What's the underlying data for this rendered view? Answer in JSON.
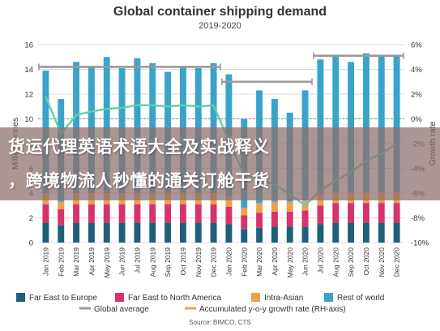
{
  "chart_data": {
    "type": "bar",
    "title": "Global container shipping demand",
    "subtitle": "2019-2020",
    "ylabel": "Million tonnes",
    "y2label": "Growth rate",
    "ylim": [
      0,
      16
    ],
    "y2lim": [
      -10,
      6
    ],
    "yticks": [
      "0",
      "2",
      "4",
      "6",
      "8",
      "10",
      "12",
      "14",
      "16"
    ],
    "y2ticks": [
      "-10%",
      "-8%",
      "-6%",
      "-4%",
      "-2%",
      "0%",
      "2%",
      "4%",
      "6%"
    ],
    "grid": true,
    "legend_position": "bottom",
    "categories": [
      "Jan 2019",
      "Feb 2019",
      "Mar 2019",
      "Apr 2019",
      "May 2019",
      "Jun 2019",
      "Jul 2019",
      "Aug 2019",
      "Sep 2019",
      "Oct 2019",
      "Nov 2019",
      "Dec 2019",
      "Jan 2020",
      "Feb 2020",
      "Mar 2020",
      "Apr 2020",
      "May 2020",
      "Jun 2020",
      "Jul 2020",
      "Aug 2020",
      "Sep 2020",
      "Oct 2020",
      "Nov 2020",
      "Dec 2020"
    ],
    "stacked_series": [
      {
        "name": "Far East to Europe",
        "color": "#1f5f7a",
        "values": [
          1.6,
          1.4,
          1.6,
          1.6,
          1.6,
          1.6,
          1.6,
          1.6,
          1.6,
          1.6,
          1.6,
          1.6,
          1.5,
          1.1,
          1.2,
          1.3,
          1.3,
          1.3,
          1.5,
          1.6,
          1.6,
          1.6,
          1.6,
          1.6
        ]
      },
      {
        "name": "Far East to North America",
        "color": "#d6336c",
        "values": [
          1.5,
          1.3,
          1.5,
          1.5,
          1.5,
          1.5,
          1.5,
          1.5,
          1.5,
          1.5,
          1.5,
          1.5,
          1.4,
          1.1,
          1.2,
          1.2,
          1.2,
          1.3,
          1.5,
          1.6,
          1.6,
          1.6,
          1.6,
          1.6
        ]
      },
      {
        "name": "Intra-Asian",
        "color": "#f0a04b",
        "values": [
          0.9,
          0.6,
          0.9,
          0.9,
          0.9,
          0.9,
          0.9,
          0.9,
          0.9,
          0.9,
          0.9,
          0.9,
          0.8,
          0.6,
          0.8,
          0.8,
          0.8,
          0.8,
          0.9,
          0.9,
          0.9,
          0.9,
          0.9,
          0.9
        ]
      },
      {
        "name": "Rest of world",
        "color": "#3aa3c9",
        "values": [
          9.9,
          8.3,
          10.6,
          10.2,
          11.0,
          10.1,
          10.9,
          10.5,
          9.8,
          10.2,
          10.1,
          10.5,
          9.9,
          7.2,
          9.1,
          8.3,
          7.2,
          8.9,
          10.9,
          11.0,
          10.5,
          11.2,
          11.0,
          11.0
        ]
      }
    ],
    "global_average": {
      "name": "Global average",
      "color": "#9a9a9a",
      "segments": [
        {
          "from": 0,
          "to": 11,
          "value": 14.2
        },
        {
          "from": 12,
          "to": 17,
          "value": 13.0
        },
        {
          "from": 18,
          "to": 23,
          "value": 15.1
        }
      ]
    },
    "growth_rate": {
      "name": "Accumulated y-o-y growth rate (RH-axis)",
      "color": "#5fd0b0",
      "values": [
        1.8,
        -1.2,
        0.3,
        0.6,
        0.8,
        0.9,
        1.1,
        1.1,
        1.0,
        1.1,
        1.0,
        1.1,
        -1.8,
        -4.5,
        -4.9,
        -5.3,
        -6.1,
        -7.0,
        -5.8,
        -5.0,
        -4.3,
        -3.4,
        -2.8,
        -2.0
      ]
    }
  },
  "legend": {
    "far_east_europe": "Far East to Europe",
    "far_east_north_america": "Far East to North America",
    "intra_asian": "Intra-Asian",
    "rest_of_world": "Rest of world",
    "global_average": "Global average",
    "growth_rate": "Accumulated y-o-y growth rate (RH-axis)"
  },
  "overlay": {
    "line1": "货运代理英语术语大全及实战释义",
    "line2": "，跨境物流人秒懂的通关订舱干货"
  },
  "source": "Source: BIMCO, CTS"
}
